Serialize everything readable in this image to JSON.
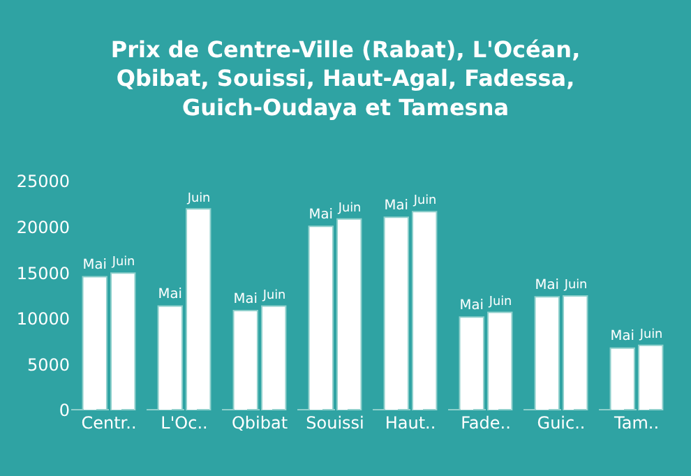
{
  "chart_data": {
    "type": "bar",
    "title": "Prix de Centre-Ville (Rabat), L'Océan,\nQbibat, Souissi, Haut-Agal, Fadessa,\nGuich-Oudaya et Tamesna",
    "categories": [
      "Centr..",
      "L'Oc..",
      "Qbibat",
      "Souissi",
      "Haut..",
      "Fade..",
      "Guic..",
      "Tam.."
    ],
    "series": [
      {
        "name": "Mai",
        "color": "#ffffff",
        "values": [
          14600,
          11400,
          10900,
          20100,
          21100,
          10200,
          12400,
          6800
        ]
      },
      {
        "name": "Juin",
        "color": "#ffffff",
        "values": [
          15000,
          22000,
          11400,
          20900,
          21700,
          10700,
          12500,
          7100
        ]
      }
    ],
    "ylim": [
      0,
      25000
    ],
    "yticks": [
      0,
      5000,
      10000,
      15000,
      20000,
      25000
    ],
    "grid": false,
    "legend": false
  }
}
